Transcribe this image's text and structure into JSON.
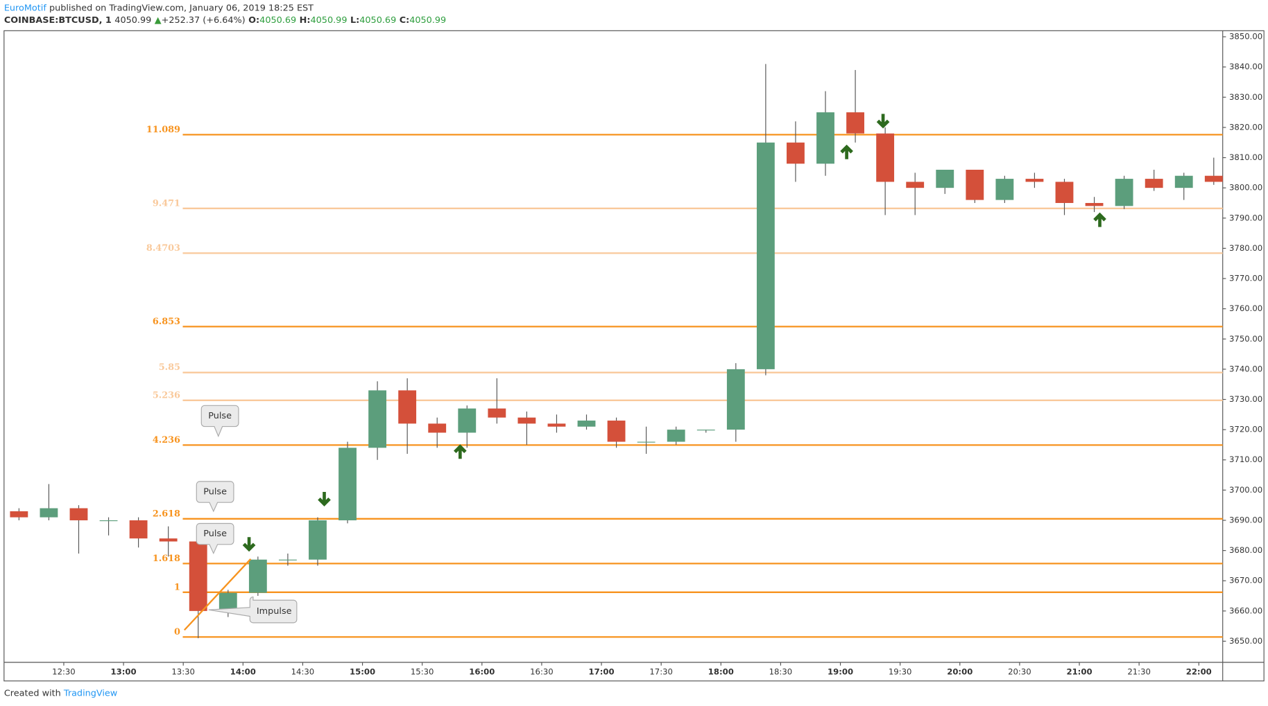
{
  "header": {
    "author": "EuroMotif",
    "published": "published on TradingView.com, January 06, 2019 18:25 EST",
    "symbol": "COINBASE:BTCUSD, 1",
    "last": "4050.99",
    "arrow": "▲",
    "change": "+252.37 (+6.64%)",
    "o_label": "O:",
    "o": "4050.69",
    "h_label": "H:",
    "h": "4050.99",
    "l_label": "L:",
    "l": "4050.69",
    "c_label": "C:",
    "c": "4050.99"
  },
  "footer": {
    "created": "Created with",
    "brand": "TradingView"
  },
  "annotations": [
    "Pulse",
    "Pulse",
    "Pulse",
    "Impulse"
  ],
  "chart_data": {
    "type": "candlestick",
    "up_color": "#5c9e7c",
    "down_color": "#d4503a",
    "x": [
      "12:00",
      "12:15",
      "12:30",
      "12:45",
      "13:00",
      "13:15",
      "13:30",
      "13:45",
      "14:00",
      "14:15",
      "14:30",
      "14:45",
      "15:00",
      "15:15",
      "15:30",
      "15:45",
      "16:00",
      "16:15",
      "16:30",
      "16:45",
      "17:00",
      "17:15",
      "17:30",
      "17:45",
      "18:00",
      "18:15",
      "18:30",
      "18:45",
      "19:00",
      "19:15",
      "19:30",
      "19:45",
      "20:00",
      "20:15",
      "20:30",
      "20:45",
      "21:00",
      "21:15",
      "21:30",
      "21:45",
      "22:00"
    ],
    "open": [
      3693,
      3691,
      3694,
      3690,
      3690,
      3684,
      3683,
      3660,
      3666,
      3677,
      3677,
      3690,
      3714,
      3733,
      3722,
      3719,
      3727,
      3724,
      3722,
      3721,
      3723,
      3716,
      3716,
      3720,
      3720,
      3740,
      3815,
      3808,
      3825,
      3818,
      3802,
      3800,
      3806,
      3796,
      3803,
      3802,
      3795,
      3794,
      3803,
      3800,
      3804
    ],
    "high": [
      3694,
      3702,
      3695,
      3691,
      3691,
      3688,
      3686,
      3667,
      3678,
      3679,
      3691,
      3716,
      3736,
      3737,
      3724,
      3728,
      3737,
      3726,
      3725,
      3725,
      3724,
      3721,
      3721,
      3720,
      3742,
      3841,
      3822,
      3832,
      3839,
      3820,
      3805,
      3806,
      3806,
      3804,
      3805,
      3803,
      3797,
      3804,
      3806,
      3805,
      3810
    ],
    "low": [
      3690,
      3690,
      3679,
      3685,
      3681,
      3678,
      3651,
      3658,
      3665,
      3675,
      3675,
      3689,
      3710,
      3712,
      3714,
      3714,
      3722,
      3715,
      3719,
      3720,
      3714,
      3712,
      3715,
      3719,
      3716,
      3738,
      3802,
      3804,
      3815,
      3791,
      3791,
      3798,
      3795,
      3795,
      3800,
      3791,
      3792,
      3793,
      3799,
      3796,
      3801
    ],
    "close": [
      3691,
      3694,
      3690,
      3690,
      3684,
      3683,
      3660,
      3666,
      3677,
      3677,
      3690,
      3714,
      3733,
      3722,
      3719,
      3727,
      3724,
      3722,
      3721,
      3723,
      3716,
      3716,
      3720,
      3720,
      3740,
      3815,
      3808,
      3825,
      3818,
      3802,
      3800,
      3806,
      3796,
      3803,
      3802,
      3795,
      3794,
      3803,
      3800,
      3804,
      3802
    ],
    "xlim": [
      "12:00",
      "22:12"
    ],
    "xticks": [
      "12:30",
      "13:00",
      "13:30",
      "14:00",
      "14:30",
      "15:00",
      "15:30",
      "16:00",
      "16:30",
      "17:00",
      "17:30",
      "18:00",
      "18:30",
      "19:00",
      "19:30",
      "20:00",
      "20:30",
      "21:00",
      "21:30",
      "22:00"
    ],
    "ylim": [
      3643,
      3852
    ],
    "yticks": [
      {
        "value": 3650,
        "label": "3650.00"
      },
      {
        "value": 3660,
        "label": "3660.00"
      },
      {
        "value": 3670,
        "label": "3670.00"
      },
      {
        "value": 3680,
        "label": "3680.00"
      },
      {
        "value": 3690,
        "label": "3690.00"
      },
      {
        "value": 3700,
        "label": "3700.00"
      },
      {
        "value": 3710,
        "label": "3710.00"
      },
      {
        "value": 3720,
        "label": "3720.00"
      },
      {
        "value": 3730,
        "label": "3730.00"
      },
      {
        "value": 3740,
        "label": "3740.00"
      },
      {
        "value": 3750,
        "label": "3750.00"
      },
      {
        "value": 3760,
        "label": "3760.00"
      },
      {
        "value": 3770,
        "label": "3770.00"
      },
      {
        "value": 3780,
        "label": "3780.00"
      },
      {
        "value": 3790,
        "label": "3790.00"
      },
      {
        "value": 3800,
        "label": "3800.00"
      },
      {
        "value": 3810,
        "label": "3810.00"
      },
      {
        "value": 3820,
        "label": "3820.00"
      },
      {
        "value": 3830,
        "label": "3830.00"
      },
      {
        "value": 3840,
        "label": "3840.00"
      },
      {
        "value": 3850,
        "label": "3850.00"
      }
    ],
    "fib_levels": [
      {
        "label": "11.089",
        "price": 3817.6,
        "color": "#f7931e"
      },
      {
        "label": "9.471",
        "price": 3793.2,
        "color": "#f9c99b"
      },
      {
        "label": "8.4703",
        "price": 3778.4,
        "color": "#f9c99b"
      },
      {
        "label": "6.853",
        "price": 3754.1,
        "color": "#f7931e"
      },
      {
        "label": "5.85",
        "price": 3738.9,
        "color": "#f9c99b"
      },
      {
        "label": "5.236",
        "price": 3729.7,
        "color": "#f9c99b"
      },
      {
        "label": "4.236",
        "price": 3714.9,
        "color": "#f7931e"
      },
      {
        "label": "2.618",
        "price": 3690.5,
        "color": "#f7931e"
      },
      {
        "label": "1.618",
        "price": 3675.7,
        "color": "#f7931e"
      },
      {
        "label": "1",
        "price": 3666.2,
        "color": "#f7931e"
      },
      {
        "label": "0",
        "price": 3651.4,
        "color": "#f7931e"
      }
    ]
  }
}
